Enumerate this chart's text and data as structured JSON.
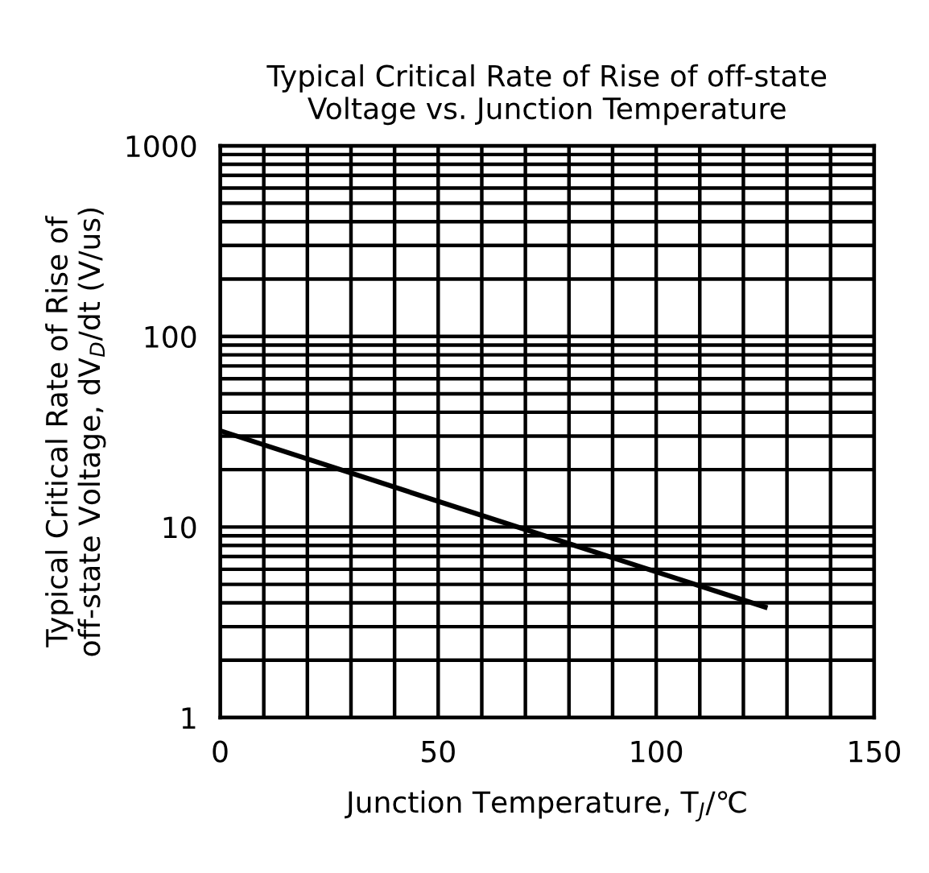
{
  "chart_data": {
    "type": "line",
    "title": "Typical Critical Rate of Rise of off-state\nVoltage vs. Junction Temperature",
    "xlabel": "Junction Temperature, T$_{J}$/℃",
    "ylabel": "Typical Critical Rate of Rise of\noff-state Voltage, dV$_{D}$/dt (V/us)",
    "x": [
      0,
      125
    ],
    "series": [
      {
        "color": "#000000",
        "values": [
          32,
          3.8
        ]
      }
    ],
    "log": "y",
    "xlim": [
      0,
      150
    ],
    "ylim": [
      1,
      1000
    ],
    "xticks": [
      0,
      50,
      100,
      150
    ],
    "yticks": [
      1,
      10,
      100,
      1000
    ],
    "grid": true,
    "marker": "none",
    "line_style": "solid"
  }
}
